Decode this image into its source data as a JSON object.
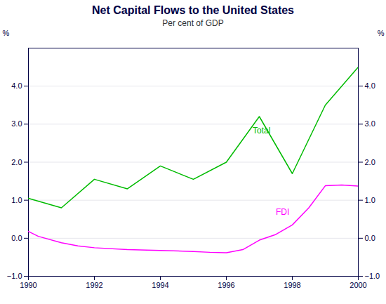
{
  "chart_data": {
    "type": "line",
    "title": "Net Capital Flows to the United States",
    "subtitle": "Per cent of GDP",
    "ylabel": "%",
    "y2label": "%",
    "xlim": [
      1990,
      2000
    ],
    "xticks": [
      1990,
      1992,
      1994,
      1996,
      1998,
      2000
    ],
    "ylim": [
      -1,
      5
    ],
    "yticks": [
      -1,
      0,
      1,
      2,
      3,
      4
    ],
    "y2lim": [
      -1,
      5
    ],
    "y2ticks": [
      -1,
      0,
      1,
      2,
      3,
      4
    ],
    "grid": true,
    "series": [
      {
        "name": "Total",
        "color": "#00bb00",
        "x": [
          1990,
          1991,
          1992,
          1993,
          1994,
          1995,
          1996,
          1997,
          1998,
          1999,
          2000
        ],
        "values": [
          1.05,
          0.8,
          1.55,
          1.3,
          1.9,
          1.55,
          2.0,
          3.2,
          1.7,
          3.5,
          4.5
        ]
      },
      {
        "name": "FDI",
        "color": "#ff00ff",
        "x": [
          1990,
          1990.3,
          1991,
          1991.5,
          1992,
          1993,
          1994,
          1995,
          1995.5,
          1996,
          1996.5,
          1997,
          1997.5,
          1998,
          1998.5,
          1999,
          1999.5,
          2000
        ],
        "values": [
          0.18,
          0.05,
          -0.12,
          -0.2,
          -0.25,
          -0.3,
          -0.32,
          -0.35,
          -0.37,
          -0.38,
          -0.3,
          -0.05,
          0.1,
          0.35,
          0.8,
          1.38,
          1.4,
          1.37
        ]
      }
    ],
    "annotations": [
      {
        "text": "Total",
        "x": 1996.8,
        "y": 2.75,
        "color": "#00bb00"
      },
      {
        "text": "FDI",
        "x": 1997.5,
        "y": 0.62,
        "color": "#ff00ff"
      }
    ]
  }
}
